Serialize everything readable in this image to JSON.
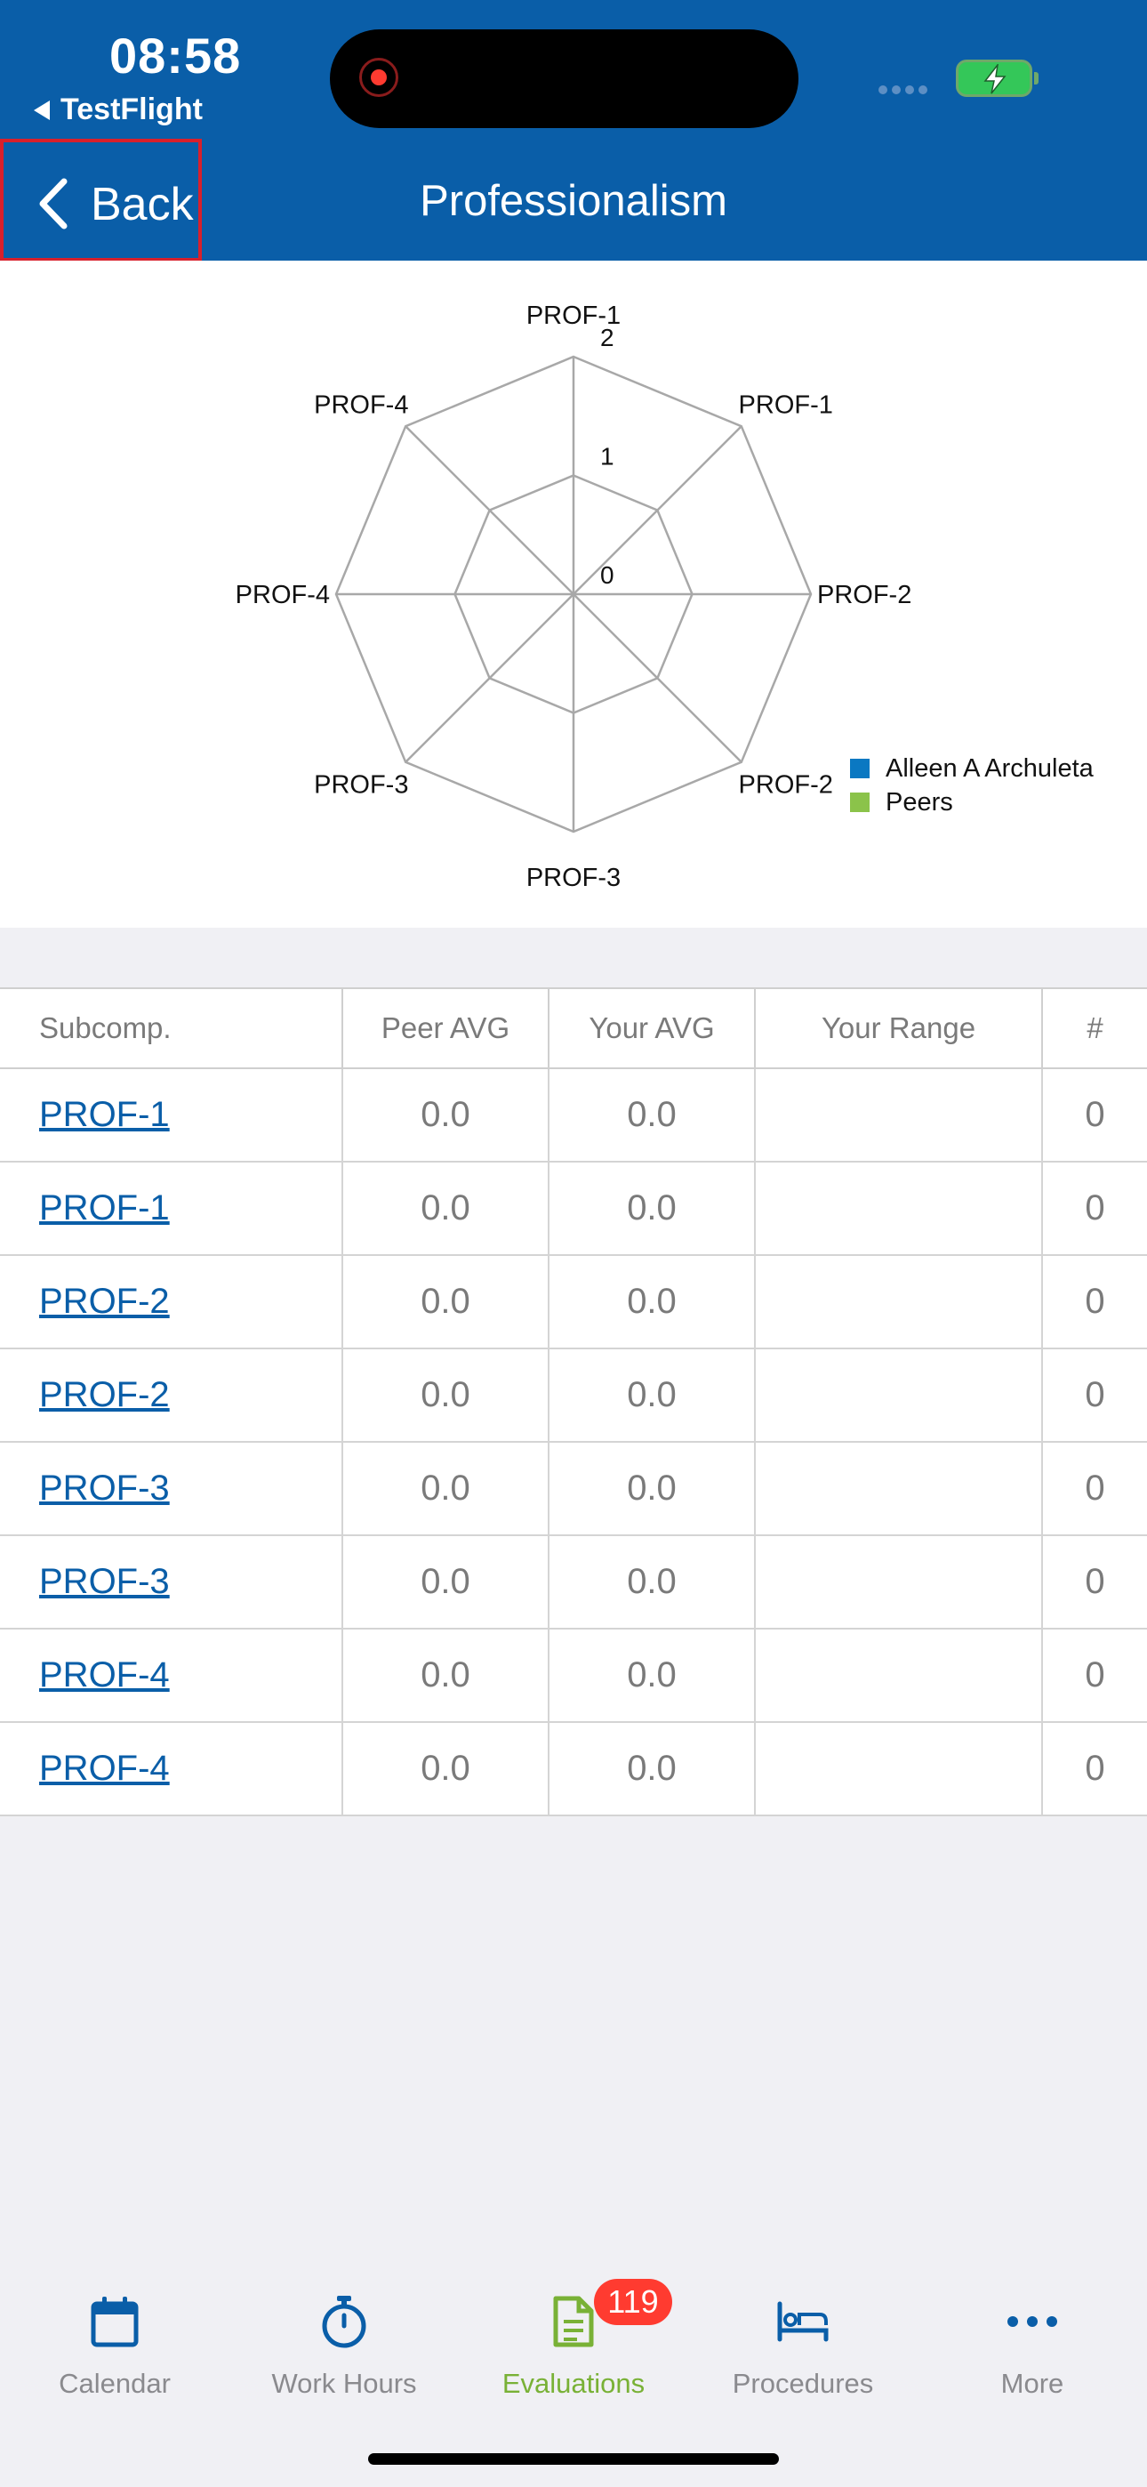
{
  "status_bar": {
    "time": "08:58",
    "back_app": "TestFlight"
  },
  "nav": {
    "back_label": "Back",
    "title": "Professionalism"
  },
  "chart_data": {
    "type": "radar",
    "axes": [
      "PROF-1",
      "PROF-1",
      "PROF-2",
      "PROF-2",
      "PROF-3",
      "PROF-3",
      "PROF-4",
      "PROF-4"
    ],
    "scale_ticks": [
      "0",
      "1",
      "2"
    ],
    "range": [
      0,
      2
    ],
    "series": [
      {
        "name": "Alleen A Archuleta",
        "color": "#0a78c2",
        "values": [
          0,
          0,
          0,
          0,
          0,
          0,
          0,
          0
        ]
      },
      {
        "name": "Peers",
        "color": "#8bc34a",
        "values": [
          0,
          0,
          0,
          0,
          0,
          0,
          0,
          0
        ]
      }
    ],
    "legend_position": "right"
  },
  "table": {
    "headers": {
      "subcomp": "Subcomp.",
      "peer_avg": "Peer AVG",
      "your_avg": "Your AVG",
      "your_range": "Your Range",
      "count": "#"
    },
    "rows": [
      {
        "subcomp": "PROF-1",
        "peer_avg": "0.0",
        "your_avg": "0.0",
        "your_range": "",
        "count": "0"
      },
      {
        "subcomp": "PROF-1",
        "peer_avg": "0.0",
        "your_avg": "0.0",
        "your_range": "",
        "count": "0"
      },
      {
        "subcomp": "PROF-2",
        "peer_avg": "0.0",
        "your_avg": "0.0",
        "your_range": "",
        "count": "0"
      },
      {
        "subcomp": "PROF-2",
        "peer_avg": "0.0",
        "your_avg": "0.0",
        "your_range": "",
        "count": "0"
      },
      {
        "subcomp": "PROF-3",
        "peer_avg": "0.0",
        "your_avg": "0.0",
        "your_range": "",
        "count": "0"
      },
      {
        "subcomp": "PROF-3",
        "peer_avg": "0.0",
        "your_avg": "0.0",
        "your_range": "",
        "count": "0"
      },
      {
        "subcomp": "PROF-4",
        "peer_avg": "0.0",
        "your_avg": "0.0",
        "your_range": "",
        "count": "0"
      },
      {
        "subcomp": "PROF-4",
        "peer_avg": "0.0",
        "your_avg": "0.0",
        "your_range": "",
        "count": "0"
      }
    ]
  },
  "tabs": [
    {
      "label": "Calendar",
      "icon": "calendar-icon"
    },
    {
      "label": "Work Hours",
      "icon": "stopwatch-icon"
    },
    {
      "label": "Evaluations",
      "icon": "document-icon",
      "active": true,
      "badge": "119"
    },
    {
      "label": "Procedures",
      "icon": "bed-icon"
    },
    {
      "label": "More",
      "icon": "more-icon"
    }
  ],
  "colors": {
    "header": "#0a5ea8",
    "link": "#0a5ea8",
    "active_tab": "#79b136",
    "badge": "#ff3b30"
  }
}
